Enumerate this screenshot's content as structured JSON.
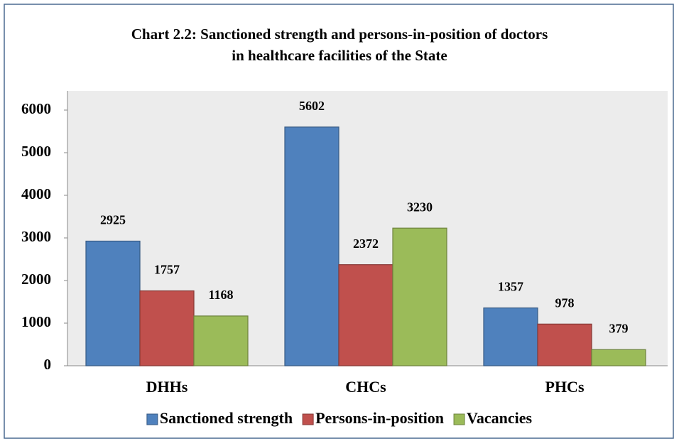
{
  "chart_data": {
    "type": "bar",
    "title": [
      "Chart 2.2: Sanctioned strength and persons-in-position of doctors",
      "in healthcare facilities of the State"
    ],
    "categories": [
      "DHHs",
      "CHCs",
      "PHCs"
    ],
    "series": [
      {
        "name": "Sanctioned strength",
        "color": "#4f81bd",
        "values": [
          2925,
          5602,
          1357
        ]
      },
      {
        "name": "Persons-in-position",
        "color": "#c0504d",
        "values": [
          1757,
          2372,
          978
        ]
      },
      {
        "name": "Vacancies",
        "color": "#9bbb59",
        "values": [
          1168,
          3230,
          379
        ]
      }
    ],
    "ylim": [
      0,
      6000
    ],
    "yticks": [
      0,
      1000,
      2000,
      3000,
      4000,
      5000,
      6000
    ],
    "grid": false,
    "legend": "bottom"
  }
}
